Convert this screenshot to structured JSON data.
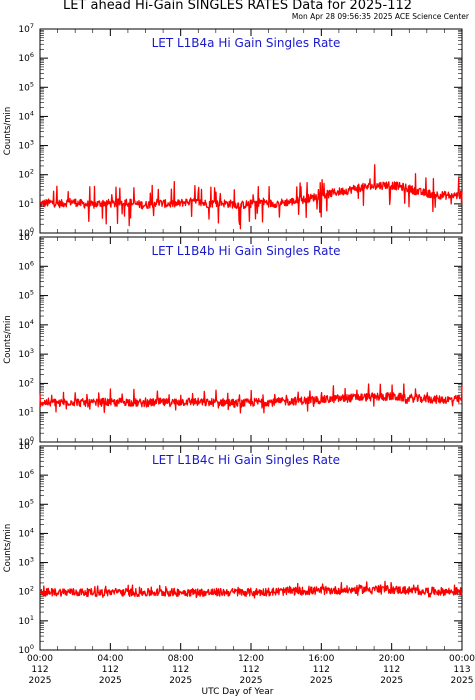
{
  "header": {
    "title": "LET ahead Hi-Gain SINGLES RATES Data for 2025-112",
    "timestamp": "Mon Apr 28 09:56:35 2025 ACE Science Center"
  },
  "colors": {
    "line": "#ff0000",
    "panel_title": "#1a1acc",
    "axes": "#000000"
  },
  "xaxis_label": "UTC Day of Year",
  "chart_data": [
    {
      "type": "line",
      "title": "LET L1B4a Hi Gain Singles Rate",
      "ylabel": "Counts/min",
      "yscale": "log",
      "ylim": [
        1,
        10000000
      ],
      "xlim": [
        0,
        24
      ],
      "xunit": "hours UTC",
      "series": [
        {
          "x": [
            0,
            0.6,
            1.2,
            1.8,
            2.4,
            3.0,
            3.6,
            4.2,
            4.8,
            5.4,
            6.0,
            6.6,
            7.2,
            7.8,
            8.4,
            9.0,
            9.6,
            10.2,
            10.8,
            11.4,
            12.0,
            12.6,
            13.2,
            13.8,
            14.4,
            15.0,
            15.6,
            16.2,
            16.8,
            17.4,
            18.0,
            18.6,
            19.2,
            19.8,
            20.4,
            21.0,
            21.6,
            22.2,
            22.8,
            23.4,
            24
          ],
          "values": [
            10,
            11,
            10,
            12,
            10,
            9,
            11,
            10,
            12,
            10,
            9,
            11,
            10,
            10,
            12,
            11,
            10,
            11,
            10,
            9,
            10,
            12,
            10,
            11,
            12,
            14,
            17,
            20,
            25,
            28,
            35,
            38,
            42,
            45,
            40,
            33,
            25,
            22,
            20,
            19,
            20
          ]
        }
      ]
    },
    {
      "type": "line",
      "title": "LET L1B4b Hi Gain Singles Rate",
      "ylabel": "Counts/min",
      "yscale": "log",
      "ylim": [
        1,
        10000000
      ],
      "xlim": [
        0,
        24
      ],
      "xunit": "hours UTC",
      "series": [
        {
          "x": [
            0,
            0.6,
            1.2,
            1.8,
            2.4,
            3.0,
            3.6,
            4.2,
            4.8,
            5.4,
            6.0,
            6.6,
            7.2,
            7.8,
            8.4,
            9.0,
            9.6,
            10.2,
            10.8,
            11.4,
            12.0,
            12.6,
            13.2,
            13.8,
            14.4,
            15.0,
            15.6,
            16.2,
            16.8,
            17.4,
            18.0,
            18.6,
            19.2,
            19.8,
            20.4,
            21.0,
            21.6,
            22.2,
            22.8,
            23.4,
            24
          ],
          "values": [
            22,
            23,
            22,
            24,
            22,
            21,
            23,
            22,
            24,
            22,
            21,
            23,
            22,
            23,
            24,
            23,
            22,
            23,
            22,
            21,
            22,
            24,
            23,
            24,
            25,
            26,
            27,
            28,
            30,
            31,
            33,
            34,
            35,
            36,
            34,
            32,
            30,
            29,
            28,
            28,
            29
          ]
        }
      ]
    },
    {
      "type": "line",
      "title": "LET L1B4c Hi Gain Singles Rate",
      "ylabel": "Counts/min",
      "yscale": "log",
      "ylim": [
        1,
        10000000
      ],
      "xlim": [
        0,
        24
      ],
      "xunit": "hours UTC",
      "series": [
        {
          "x": [
            0,
            0.6,
            1.2,
            1.8,
            2.4,
            3.0,
            3.6,
            4.2,
            4.8,
            5.4,
            6.0,
            6.6,
            7.2,
            7.8,
            8.4,
            9.0,
            9.6,
            10.2,
            10.8,
            11.4,
            12.0,
            12.6,
            13.2,
            13.8,
            14.4,
            15.0,
            15.6,
            16.2,
            16.8,
            17.4,
            18.0,
            18.6,
            19.2,
            19.8,
            20.4,
            21.0,
            21.6,
            22.2,
            22.8,
            23.4,
            24
          ],
          "values": [
            95,
            96,
            97,
            96,
            95,
            94,
            95,
            96,
            95,
            94,
            93,
            94,
            95,
            95,
            96,
            95,
            94,
            95,
            96,
            95,
            96,
            98,
            100,
            102,
            104,
            106,
            108,
            110,
            112,
            115,
            118,
            122,
            125,
            120,
            115,
            110,
            106,
            104,
            102,
            101,
            102
          ]
        }
      ]
    }
  ],
  "x_ticks": [
    {
      "time": "00:00",
      "day": "112",
      "year": "2025"
    },
    {
      "time": "04:00",
      "day": "112",
      "year": "2025"
    },
    {
      "time": "08:00",
      "day": "112",
      "year": "2025"
    },
    {
      "time": "12:00",
      "day": "112",
      "year": "2025"
    },
    {
      "time": "16:00",
      "day": "112",
      "year": "2025"
    },
    {
      "time": "20:00",
      "day": "112",
      "year": "2025"
    },
    {
      "time": "00:00",
      "day": "113",
      "year": "2025"
    }
  ]
}
